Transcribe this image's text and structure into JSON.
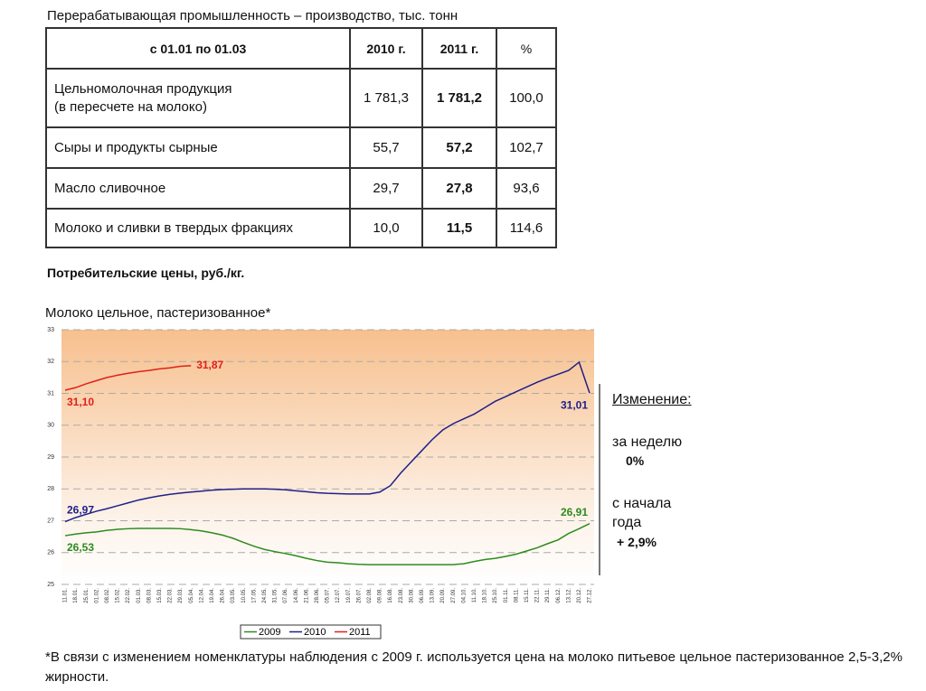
{
  "table": {
    "caption": "Перерабатывающая промышленность – производство, тыс. тонн",
    "header": [
      "с 01.01 по 01.03",
      "2010 г.",
      "2011 г.",
      "%"
    ],
    "rows": [
      [
        "Цельномолочная продукция\n(в пересчете на молоко)",
        "1 781,3",
        "1 781,2",
        "100,0"
      ],
      [
        "Сыры и продукты сырные",
        "55,7",
        "57,2",
        "102,7"
      ],
      [
        "Масло сливочное",
        "29,7",
        "27,8",
        "93,6"
      ],
      [
        "Молоко и сливки в твердых фракциях",
        "10,0",
        "11,5",
        "114,6"
      ]
    ]
  },
  "section_title": "Потребительские цены, руб./кг.",
  "chart_data": {
    "type": "line",
    "title": "Молоко цельное, пастеризованное*",
    "categories": [
      "11.01.",
      "18.01.",
      "25.01.",
      "01.02.",
      "08.02.",
      "15.02.",
      "22.02.",
      "01.03.",
      "08.03.",
      "15.03.",
      "22.03.",
      "29.03.",
      "05.04.",
      "12.04.",
      "19.04.",
      "26.04.",
      "03.05.",
      "10.05.",
      "17.05.",
      "24.05.",
      "31.05.",
      "07.06.",
      "14.06.",
      "21.06.",
      "28.06.",
      "05.07.",
      "12.07.",
      "19.07.",
      "26.07.",
      "02.08.",
      "09.08.",
      "16.08.",
      "23.08.",
      "30.08.",
      "06.09.",
      "13.09.",
      "20.09.",
      "27.09.",
      "04.10.",
      "11.10.",
      "18.10.",
      "25.10.",
      "01.11.",
      "08.11.",
      "15.11.",
      "22.11.",
      "29.11.",
      "06.12.",
      "13.12.",
      "20.12.",
      "27.12."
    ],
    "ylim": [
      25,
      33
    ],
    "yticks": [
      25,
      26,
      27,
      28,
      29,
      30,
      31,
      32,
      33
    ],
    "grid": true,
    "series": [
      {
        "name": "2009",
        "color": "#2e8b1e",
        "values": [
          26.53,
          26.58,
          26.62,
          26.65,
          26.7,
          26.73,
          26.75,
          26.76,
          26.76,
          26.76,
          26.76,
          26.75,
          26.72,
          26.68,
          26.62,
          26.55,
          26.45,
          26.32,
          26.2,
          26.1,
          26.03,
          25.97,
          25.9,
          25.82,
          25.75,
          25.7,
          25.68,
          25.65,
          25.63,
          25.62,
          25.62,
          25.62,
          25.62,
          25.62,
          25.62,
          25.62,
          25.62,
          25.62,
          25.65,
          25.72,
          25.78,
          25.82,
          25.88,
          25.95,
          26.05,
          26.15,
          26.28,
          26.4,
          26.6,
          26.75,
          26.91
        ],
        "value_labels": [
          "26,53",
          null,
          null,
          null,
          null,
          null,
          null,
          null,
          null,
          null,
          null,
          null,
          null,
          null,
          null,
          null,
          null,
          null,
          null,
          null,
          null,
          null,
          null,
          null,
          null,
          null,
          null,
          null,
          null,
          null,
          null,
          null,
          null,
          null,
          null,
          null,
          null,
          null,
          null,
          null,
          null,
          null,
          null,
          null,
          null,
          null,
          null,
          null,
          null,
          null,
          "26,91"
        ]
      },
      {
        "name": "2010",
        "color": "#1f1f8a",
        "values": [
          26.97,
          27.1,
          27.2,
          27.3,
          27.38,
          27.47,
          27.56,
          27.65,
          27.72,
          27.78,
          27.83,
          27.87,
          27.9,
          27.93,
          27.96,
          27.98,
          27.99,
          28.0,
          28.0,
          28.0,
          27.99,
          27.97,
          27.94,
          27.91,
          27.88,
          27.86,
          27.85,
          27.84,
          27.84,
          27.84,
          27.9,
          28.1,
          28.5,
          28.85,
          29.2,
          29.55,
          29.85,
          30.05,
          30.2,
          30.35,
          30.55,
          30.75,
          30.9,
          31.05,
          31.2,
          31.35,
          31.48,
          31.6,
          31.72,
          31.98,
          31.01
        ],
        "value_labels": [
          "26,97",
          null,
          null,
          null,
          null,
          null,
          null,
          null,
          null,
          null,
          null,
          null,
          null,
          null,
          null,
          null,
          null,
          null,
          null,
          null,
          null,
          null,
          null,
          null,
          null,
          null,
          null,
          null,
          null,
          null,
          null,
          null,
          null,
          null,
          null,
          null,
          null,
          null,
          null,
          null,
          null,
          null,
          null,
          null,
          null,
          null,
          null,
          null,
          null,
          null,
          "31,01"
        ]
      },
      {
        "name": "2011",
        "color": "#e0201a",
        "values": [
          31.1,
          31.18,
          31.3,
          31.4,
          31.5,
          31.57,
          31.63,
          31.68,
          31.72,
          31.77,
          31.8,
          31.85,
          31.87,
          null,
          null,
          null,
          null,
          null,
          null,
          null,
          null,
          null,
          null,
          null,
          null,
          null,
          null,
          null,
          null,
          null,
          null,
          null,
          null,
          null,
          null,
          null,
          null,
          null,
          null,
          null,
          null,
          null,
          null,
          null,
          null,
          null,
          null,
          null,
          null,
          null,
          null
        ],
        "value_labels": [
          "31,10",
          null,
          null,
          null,
          null,
          null,
          null,
          null,
          null,
          null,
          null,
          null,
          "31,87",
          null,
          null,
          null,
          null,
          null,
          null,
          null,
          null,
          null,
          null,
          null,
          null,
          null,
          null,
          null,
          null,
          null,
          null,
          null,
          null,
          null,
          null,
          null,
          null,
          null,
          null,
          null,
          null,
          null,
          null,
          null,
          null,
          null,
          null,
          null,
          null,
          null,
          null
        ]
      }
    ]
  },
  "sidebar": {
    "heading": "Изменение:",
    "week_label": "за неделю",
    "week_value": "0%",
    "year_label": "с начала\nгода",
    "year_value": "+ 2,9%"
  },
  "footnote": "*В связи с изменением номенклатуры наблюдения с 2009 г. используется цена на молоко питьевое цельное пастеризованное 2,5-3,2% жирности."
}
